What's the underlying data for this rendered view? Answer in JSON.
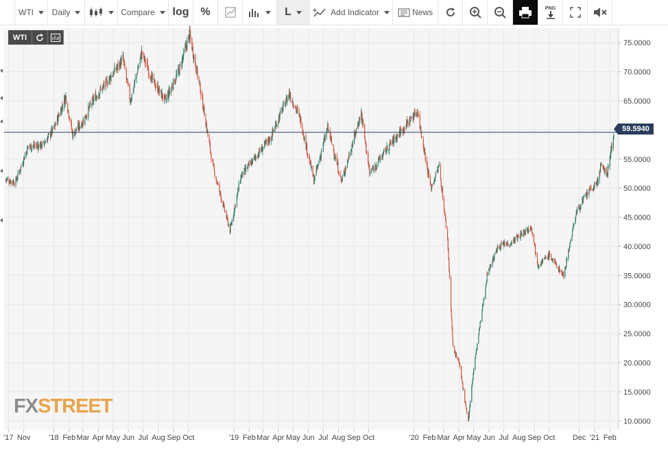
{
  "toolbar": {
    "symbol": "WTI",
    "interval": "Daily",
    "compare": "Compare",
    "log": "log",
    "percent": "%",
    "line_type": "L",
    "add_indicator": "Add Indicator",
    "news": "News",
    "png": "PNG"
  },
  "badge": {
    "symbol": "WTI"
  },
  "logo": {
    "fx": "FX",
    "street": "STREET"
  },
  "current_price": "59.5940",
  "colors": {
    "up": "#2e7d6b",
    "down": "#d2543e",
    "price_line": "#2b3d5c",
    "grid": "#e6e6e6",
    "plot_bg": "#f5f5f5"
  },
  "chart_data": {
    "type": "candlestick",
    "symbol": "WTI",
    "interval": "Daily",
    "ylim": [
      8.5,
      77.5
    ],
    "y_ticks": [
      "75.0000",
      "70.0000",
      "65.0000",
      "60.0000",
      "55.0000",
      "50.0000",
      "45.0000",
      "40.0000",
      "35.0000",
      "30.0000",
      "25.0000",
      "20.0000",
      "15.0000",
      "10.0000"
    ],
    "x_ticks": [
      "'17",
      "Nov",
      "'18",
      "Feb",
      "Mar",
      "Apr",
      "May",
      "Jun",
      "Jul",
      "Aug",
      "Sep",
      "Oct",
      "'19",
      "Feb",
      "Mar",
      "Apr",
      "May",
      "Jun",
      "Jul",
      "Aug",
      "Sep",
      "Oct",
      "'20",
      "Feb",
      "Mar",
      "Apr",
      "May",
      "Jun",
      "Jul",
      "Aug",
      "Sep",
      "Oct",
      "Dec",
      "'21",
      "Feb"
    ],
    "x_tick_dates": [
      "2017-10-01",
      "2017-11-01",
      "2018-01-01",
      "2018-02-01",
      "2018-03-01",
      "2018-04-01",
      "2018-05-01",
      "2018-06-01",
      "2018-07-01",
      "2018-08-01",
      "2018-09-01",
      "2018-10-01",
      "2019-01-01",
      "2019-02-01",
      "2019-03-01",
      "2019-04-01",
      "2019-05-01",
      "2019-06-01",
      "2019-07-01",
      "2019-08-01",
      "2019-09-01",
      "2019-10-01",
      "2020-01-01",
      "2020-02-01",
      "2020-03-01",
      "2020-04-01",
      "2020-05-01",
      "2020-06-01",
      "2020-07-01",
      "2020-08-01",
      "2020-09-01",
      "2020-10-01",
      "2020-12-01",
      "2021-01-01",
      "2021-02-01"
    ],
    "current_price": 59.594,
    "grid": true,
    "approx_close_path": [
      [
        "2017-09-25",
        51.5
      ],
      [
        "2017-10-15",
        51.0
      ],
      [
        "2017-11-10",
        57.2
      ],
      [
        "2017-12-10",
        57.4
      ],
      [
        "2018-01-02",
        60.4
      ],
      [
        "2018-01-25",
        65.8
      ],
      [
        "2018-02-08",
        59.2
      ],
      [
        "2018-03-01",
        61.5
      ],
      [
        "2018-03-22",
        65.2
      ],
      [
        "2018-04-20",
        68.4
      ],
      [
        "2018-05-21",
        72.2
      ],
      [
        "2018-06-05",
        65.0
      ],
      [
        "2018-06-28",
        73.3
      ],
      [
        "2018-07-20",
        68.5
      ],
      [
        "2018-08-15",
        65.0
      ],
      [
        "2018-09-12",
        70.3
      ],
      [
        "2018-10-03",
        76.4
      ],
      [
        "2018-10-25",
        67.0
      ],
      [
        "2018-11-20",
        53.5
      ],
      [
        "2018-12-24",
        42.7
      ],
      [
        "2019-01-15",
        52.0
      ],
      [
        "2019-02-15",
        55.5
      ],
      [
        "2019-03-15",
        58.5
      ],
      [
        "2019-04-23",
        66.3
      ],
      [
        "2019-05-15",
        62.0
      ],
      [
        "2019-06-12",
        51.3
      ],
      [
        "2019-07-10",
        60.4
      ],
      [
        "2019-08-07",
        51.1
      ],
      [
        "2019-09-16",
        63.0
      ],
      [
        "2019-10-03",
        52.5
      ],
      [
        "2019-11-15",
        57.7
      ],
      [
        "2019-12-20",
        61.3
      ],
      [
        "2020-01-08",
        63.3
      ],
      [
        "2020-02-04",
        50.0
      ],
      [
        "2020-02-21",
        53.8
      ],
      [
        "2020-03-09",
        41.3
      ],
      [
        "2020-03-20",
        22.5
      ],
      [
        "2020-04-01",
        20.0
      ],
      [
        "2020-04-20",
        10.0
      ],
      [
        "2020-05-01",
        19.0
      ],
      [
        "2020-05-29",
        35.5
      ],
      [
        "2020-06-20",
        40.0
      ],
      [
        "2020-07-15",
        40.6
      ],
      [
        "2020-08-26",
        43.4
      ],
      [
        "2020-09-08",
        36.8
      ],
      [
        "2020-10-01",
        38.5
      ],
      [
        "2020-10-30",
        35.0
      ],
      [
        "2020-11-25",
        45.9
      ],
      [
        "2020-12-18",
        49.2
      ],
      [
        "2021-01-06",
        50.8
      ],
      [
        "2021-01-13",
        53.6
      ],
      [
        "2021-01-27",
        52.6
      ],
      [
        "2021-02-09",
        59.594
      ]
    ]
  }
}
